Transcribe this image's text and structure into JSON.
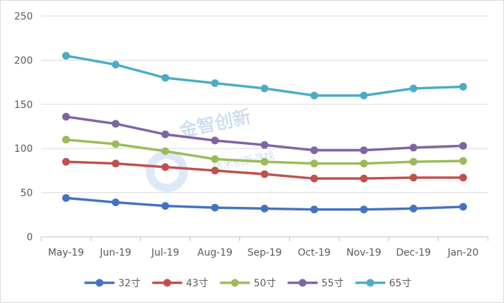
{
  "chart_data": {
    "type": "line",
    "title": "",
    "xlabel": "",
    "ylabel": "",
    "categories": [
      "May-19",
      "Jun-19",
      "Jul-19",
      "Aug-19",
      "Sep-19",
      "Oct-19",
      "Nov-19",
      "Dec-19",
      "Jan-20"
    ],
    "ylim": [
      0,
      250
    ],
    "yticks": [
      0,
      50,
      100,
      150,
      200,
      250
    ],
    "grid": true,
    "legend_position": "bottom",
    "series": [
      {
        "name": "32寸",
        "color": "#4472C4",
        "values": [
          44,
          39,
          35,
          33,
          32,
          31,
          31,
          32,
          34
        ]
      },
      {
        "name": "43寸",
        "color": "#C0504D",
        "values": [
          85,
          83,
          79,
          75,
          71,
          66,
          66,
          67,
          67
        ]
      },
      {
        "name": "50寸",
        "color": "#9BBB59",
        "values": [
          110,
          105,
          97,
          88,
          85,
          83,
          83,
          85,
          86
        ]
      },
      {
        "name": "55寸",
        "color": "#8064A2",
        "values": [
          136,
          128,
          116,
          109,
          104,
          98,
          98,
          101,
          103
        ]
      },
      {
        "name": "65寸",
        "color": "#4BACC6",
        "values": [
          205,
          195,
          180,
          174,
          168,
          160,
          160,
          168,
          170
        ]
      }
    ]
  },
  "watermark": {
    "text_main": "金智创新",
    "text_sub": "技术创新寻找"
  }
}
